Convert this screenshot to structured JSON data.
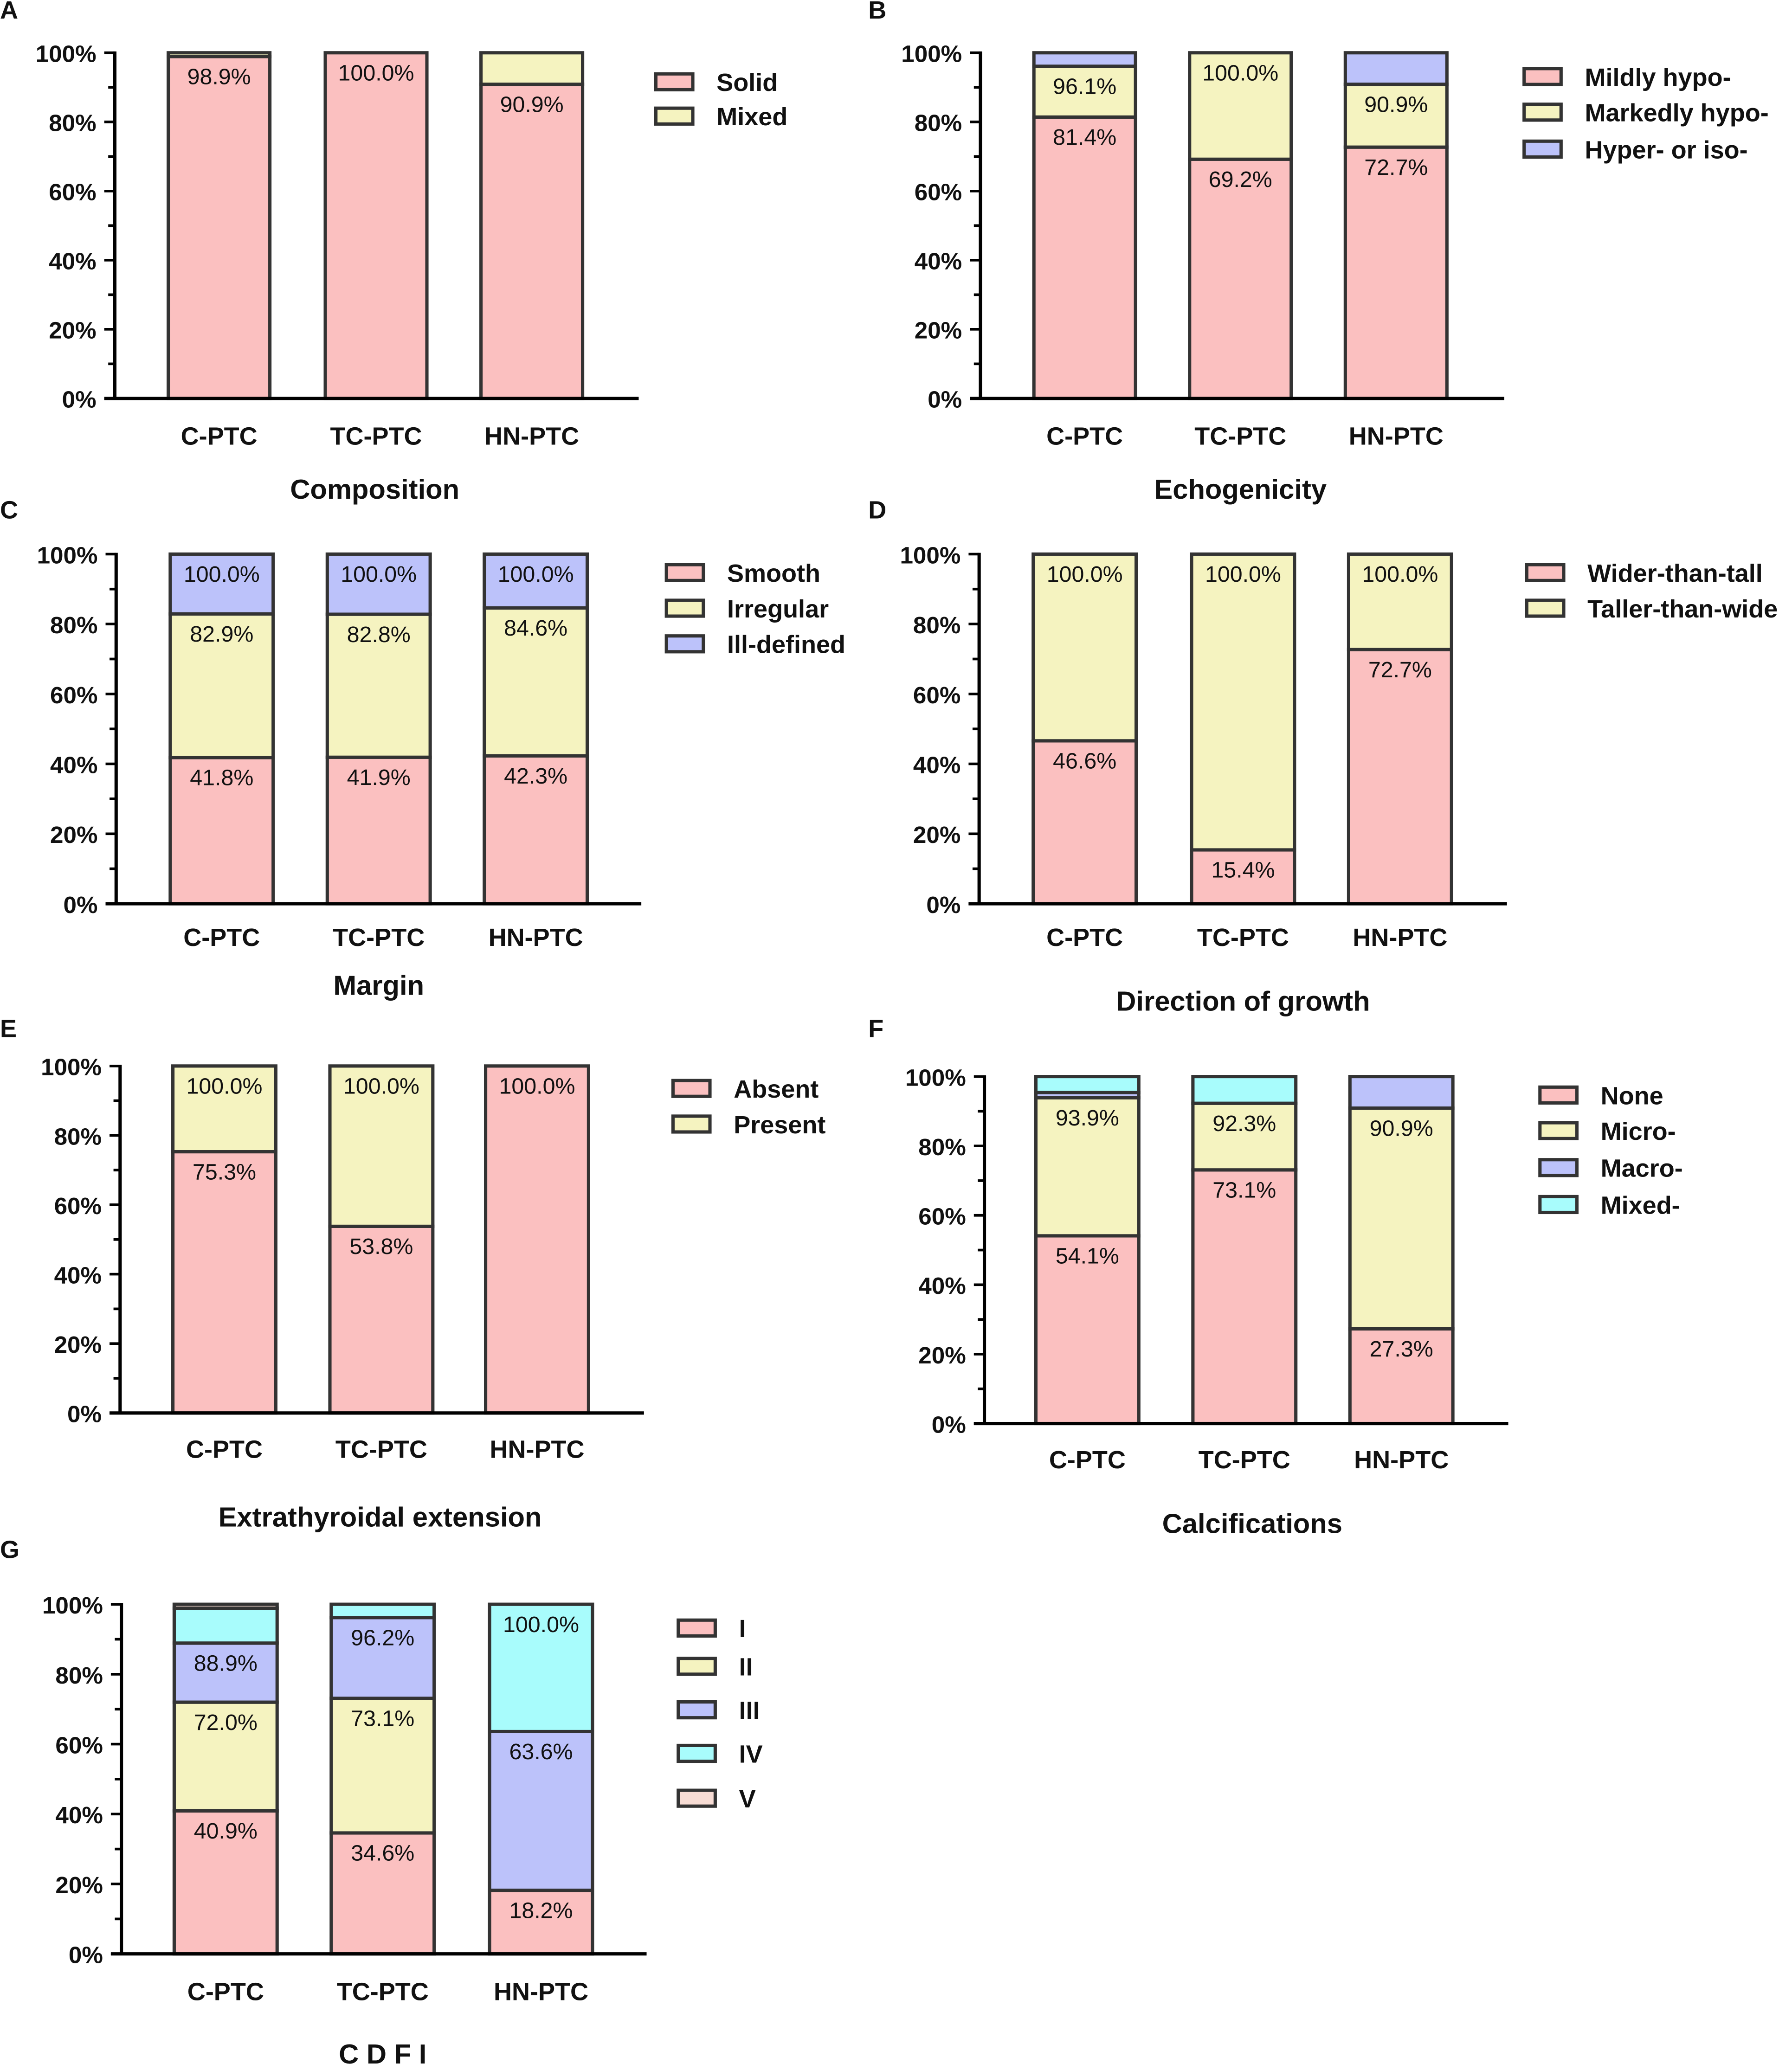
{
  "chart_data": [
    {
      "type": "bar",
      "stacked": true,
      "panel": "A",
      "title": "Composition",
      "ylabel": "",
      "ylim": [
        0,
        100
      ],
      "ticks": [
        "0%",
        "20%",
        "40%",
        "60%",
        "80%",
        "100%"
      ],
      "categories": [
        "C-PTC",
        "TC-PTC",
        "HN-PTC"
      ],
      "series": [
        {
          "name": "Solid",
          "color": "#fbc0c0",
          "values": [
            98.9,
            100,
            90.9
          ],
          "labels": [
            "98.9%",
            "100.0%",
            "90.9%"
          ]
        },
        {
          "name": "Mixed",
          "color": "#f5f3c0",
          "values": [
            1.1,
            0,
            9.1
          ],
          "labels": [
            null,
            null,
            null
          ]
        }
      ]
    },
    {
      "type": "bar",
      "stacked": true,
      "panel": "B",
      "title": "Echogenicity",
      "ylim": [
        0,
        100
      ],
      "ticks": [
        "0%",
        "20%",
        "40%",
        "60%",
        "80%",
        "100%"
      ],
      "categories": [
        "C-PTC",
        "TC-PTC",
        "HN-PTC"
      ],
      "series": [
        {
          "name": "Mildly hypo-",
          "color": "#fbc0c0",
          "values": [
            81.4,
            69.2,
            72.7
          ],
          "labels": [
            "81.4%",
            "69.2%",
            "72.7%"
          ]
        },
        {
          "name": "Markedly hypo-",
          "color": "#f5f3c0",
          "values": [
            14.7,
            30.8,
            18.2
          ],
          "labels": [
            "96.1%",
            "100.0%",
            "90.9%"
          ]
        },
        {
          "name": "Hyper- or iso-",
          "color": "#bcc2fa",
          "values": [
            3.9,
            0,
            9.1
          ],
          "labels": [
            null,
            null,
            null
          ]
        }
      ]
    },
    {
      "type": "bar",
      "stacked": true,
      "panel": "C",
      "title": "Margin",
      "ylim": [
        0,
        100
      ],
      "ticks": [
        "0%",
        "20%",
        "40%",
        "60%",
        "80%",
        "100%"
      ],
      "categories": [
        "C-PTC",
        "TC-PTC",
        "HN-PTC"
      ],
      "series": [
        {
          "name": "Smooth",
          "color": "#fbc0c0",
          "values": [
            41.8,
            41.9,
            42.3
          ],
          "labels": [
            "41.8%",
            "41.9%",
            "42.3%"
          ]
        },
        {
          "name": "Irregular",
          "color": "#f5f3c0",
          "values": [
            41.1,
            40.9,
            42.3
          ],
          "labels": [
            "82.9%",
            "82.8%",
            "84.6%"
          ]
        },
        {
          "name": "Ill-defined",
          "color": "#bcc2fa",
          "values": [
            17.1,
            17.2,
            15.4
          ],
          "labels": [
            "100.0%",
            "100.0%",
            "100.0%"
          ]
        }
      ]
    },
    {
      "type": "bar",
      "stacked": true,
      "panel": "D",
      "title": "Direction of growth",
      "ylim": [
        0,
        100
      ],
      "ticks": [
        "0%",
        "20%",
        "40%",
        "60%",
        "80%",
        "100%"
      ],
      "categories": [
        "C-PTC",
        "TC-PTC",
        "HN-PTC"
      ],
      "series": [
        {
          "name": "Wider-than-tall",
          "color": "#fbc0c0",
          "values": [
            46.6,
            15.4,
            72.7
          ],
          "labels": [
            "46.6%",
            "15.4%",
            "72.7%"
          ]
        },
        {
          "name": "Taller-than-wide",
          "color": "#f5f3c0",
          "values": [
            53.4,
            84.6,
            27.3
          ],
          "labels": [
            "100.0%",
            "100.0%",
            "100.0%"
          ]
        }
      ]
    },
    {
      "type": "bar",
      "stacked": true,
      "panel": "E",
      "title": "Extrathyroidal extension",
      "ylim": [
        0,
        100
      ],
      "ticks": [
        "0%",
        "20%",
        "40%",
        "60%",
        "80%",
        "100%"
      ],
      "categories": [
        "C-PTC",
        "TC-PTC",
        "HN-PTC"
      ],
      "series": [
        {
          "name": "Absent",
          "color": "#fbc0c0",
          "values": [
            75.3,
            53.8,
            100
          ],
          "labels": [
            "75.3%",
            "53.8%",
            "100.0%"
          ]
        },
        {
          "name": "Present",
          "color": "#f5f3c0",
          "values": [
            24.7,
            46.2,
            0
          ],
          "labels": [
            "100.0%",
            "100.0%",
            null
          ]
        }
      ]
    },
    {
      "type": "bar",
      "stacked": true,
      "panel": "F",
      "title": "Calcifications",
      "ylim": [
        0,
        100
      ],
      "ticks": [
        "0%",
        "20%",
        "40%",
        "60%",
        "80%",
        "100%"
      ],
      "categories": [
        "C-PTC",
        "TC-PTC",
        "HN-PTC"
      ],
      "series": [
        {
          "name": "None",
          "color": "#fbc0c0",
          "values": [
            54.1,
            73.1,
            27.3
          ],
          "labels": [
            "54.1%",
            "73.1%",
            "27.3%"
          ]
        },
        {
          "name": "Micro-",
          "color": "#f5f3c0",
          "values": [
            39.8,
            19.2,
            63.6
          ],
          "labels": [
            "93.9%",
            "92.3%",
            "90.9%"
          ]
        },
        {
          "name": "Macro-",
          "color": "#bcc2fa",
          "values": [
            1.5,
            0,
            9.1
          ],
          "labels": [
            null,
            null,
            null
          ]
        },
        {
          "name": "Mixed-",
          "color": "#a8fcfc",
          "values": [
            4.6,
            7.7,
            0
          ],
          "labels": [
            null,
            null,
            null
          ]
        }
      ]
    },
    {
      "type": "bar",
      "stacked": true,
      "panel": "G",
      "title": "C D F I",
      "ylim": [
        0,
        100
      ],
      "ticks": [
        "0%",
        "20%",
        "40%",
        "60%",
        "80%",
        "100%"
      ],
      "categories": [
        "C-PTC",
        "TC-PTC",
        "HN-PTC"
      ],
      "series": [
        {
          "name": "I",
          "color": "#fbc0c0",
          "values": [
            40.9,
            34.6,
            18.2
          ],
          "labels": [
            "40.9%",
            "34.6%",
            "18.2%"
          ]
        },
        {
          "name": "II",
          "color": "#f5f3c0",
          "values": [
            31.1,
            38.5,
            0
          ],
          "labels": [
            "72.0%",
            "73.1%",
            null
          ]
        },
        {
          "name": "III",
          "color": "#bcc2fa",
          "values": [
            16.9,
            23.1,
            45.4
          ],
          "labels": [
            "88.9%",
            "96.2%",
            "63.6%"
          ]
        },
        {
          "name": "IV",
          "color": "#a8fcfc",
          "values": [
            10.0,
            3.8,
            36.4
          ],
          "labels": [
            null,
            null,
            "100.0%"
          ]
        },
        {
          "name": "V",
          "color": "#f7dcd4",
          "values": [
            1.1,
            0,
            0
          ],
          "labels": [
            null,
            null,
            null
          ]
        }
      ]
    }
  ]
}
